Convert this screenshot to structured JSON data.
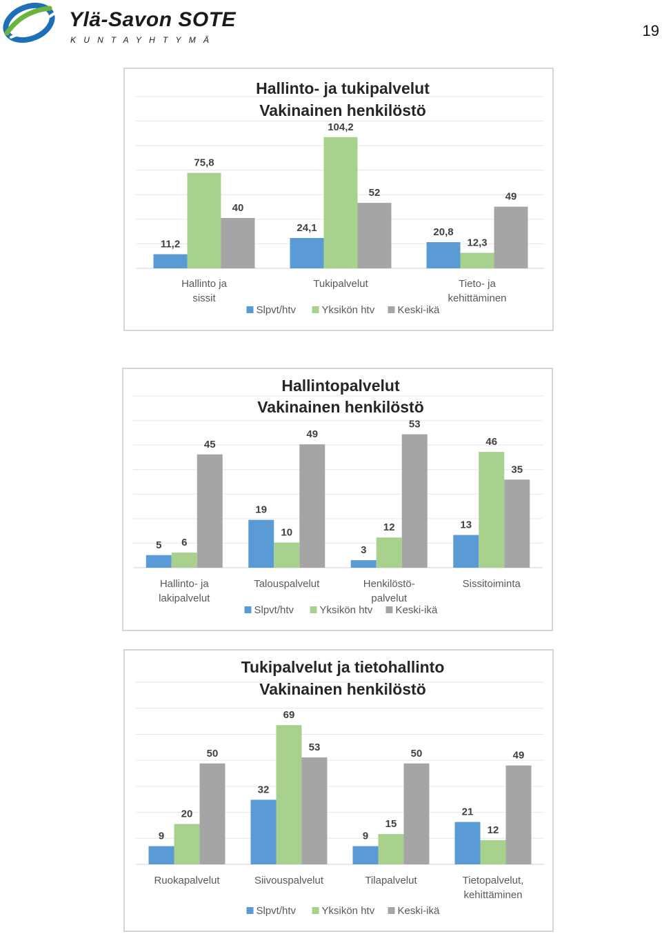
{
  "header": {
    "org_name": "Ylä-Savon SOTE",
    "org_sub": "KUNTAYHTYMÄ",
    "page_number": "19"
  },
  "colors": {
    "series": [
      "#5b9bd5",
      "#a9d18e",
      "#a5a5a5"
    ],
    "logo_blue": "#1d6fb8",
    "logo_green": "#6ab43e"
  },
  "chart_data": [
    {
      "type": "bar",
      "title": "Hallinto- ja tukipalvelut",
      "subtitle": "Vakinainen henkilöstö",
      "categories": [
        "Hallinto ja\nsissit",
        "Tukipalvelut",
        "Tieto- ja\nkehittäminen"
      ],
      "series": [
        {
          "name": "Slpvt/htv",
          "values": [
            11.2,
            24.1,
            20.8
          ],
          "labels": [
            "11,2",
            "24,1",
            "20,8"
          ]
        },
        {
          "name": "Yksikön htv",
          "values": [
            75.8,
            104.2,
            12.3
          ],
          "labels": [
            "75,8",
            "104,2",
            "12,3"
          ]
        },
        {
          "name": "Keski-ikä",
          "values": [
            40,
            52,
            49
          ],
          "labels": [
            "40",
            "52",
            "49"
          ]
        }
      ],
      "ylim": [
        0,
        120
      ],
      "grid": true,
      "legend": "bottom"
    },
    {
      "type": "bar",
      "title": "Hallintopalvelut",
      "subtitle": "Vakinainen henkilöstö",
      "categories": [
        "Hallinto- ja\nlakipalvelut",
        "Talouspalvelut",
        "Henkilöstö-\npalvelut",
        "Sissitoiminta"
      ],
      "series": [
        {
          "name": "Slpvt/htv",
          "values": [
            5,
            19,
            3,
            13
          ],
          "labels": [
            "5",
            "19",
            "3",
            "13"
          ]
        },
        {
          "name": "Yksikön htv",
          "values": [
            6,
            10,
            12,
            46
          ],
          "labels": [
            "6",
            "10",
            "12",
            "46"
          ]
        },
        {
          "name": "Keski-ikä",
          "values": [
            45,
            49,
            53,
            35
          ],
          "labels": [
            "45",
            "49",
            "53",
            "35"
          ]
        }
      ],
      "ylim": [
        0,
        60
      ],
      "grid": true,
      "legend": "bottom"
    },
    {
      "type": "bar",
      "title": "Tukipalvelut ja tietohallinto",
      "subtitle": "Vakinainen henkilöstö",
      "categories": [
        "Ruokapalvelut",
        "Siivouspalvelut",
        "Tilapalvelut",
        "Tietopalvelut,\nkehittäminen"
      ],
      "series": [
        {
          "name": "Slpvt/htv",
          "values": [
            9,
            32,
            9,
            21
          ],
          "labels": [
            "9",
            "32",
            "9",
            "21"
          ]
        },
        {
          "name": "Yksikön htv",
          "values": [
            20,
            69,
            15,
            12
          ],
          "labels": [
            "20",
            "69",
            "15",
            "12"
          ]
        },
        {
          "name": "Keski-ikä",
          "values": [
            50,
            53,
            50,
            49
          ],
          "labels": [
            "50",
            "53",
            "50",
            "49"
          ]
        }
      ],
      "ylim": [
        0,
        80
      ],
      "grid": true,
      "legend": "bottom"
    }
  ]
}
